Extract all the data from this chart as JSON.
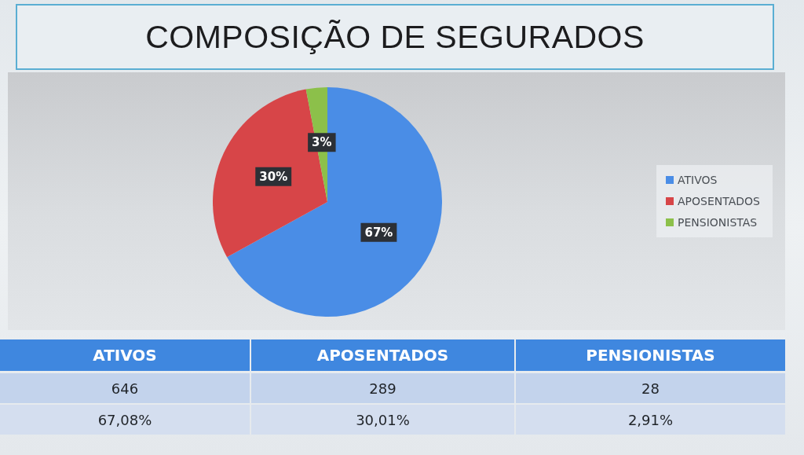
{
  "chart_data": {
    "type": "pie",
    "title": "COMPOSIÇÃO DE SEGURADOS",
    "categories": [
      "ATIVOS",
      "APOSENTADOS",
      "PENSIONISTAS"
    ],
    "values": [
      67,
      30,
      3
    ],
    "colors": [
      "#4a8de6",
      "#d74548",
      "#8cc04a"
    ],
    "value_labels": [
      "67%",
      "30%",
      "3%"
    ],
    "legend": "right",
    "annotations": [
      "646",
      "289",
      "28",
      "67,08%",
      "30,01%",
      "2,91%"
    ]
  }
}
